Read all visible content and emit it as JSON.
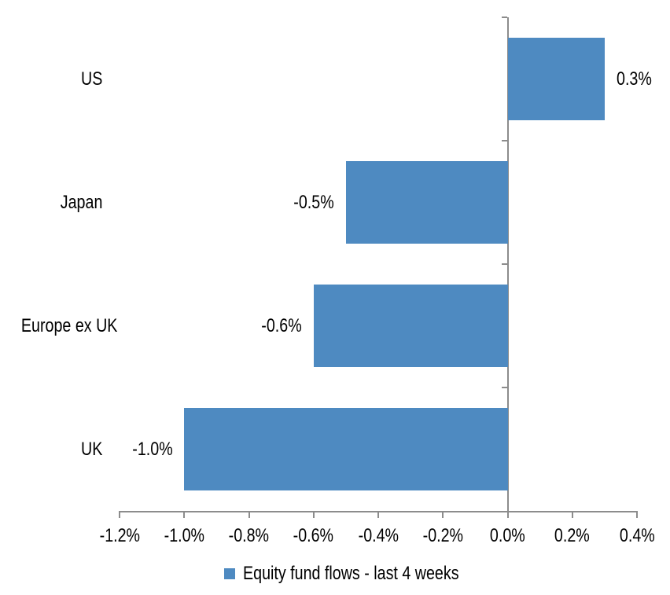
{
  "chart_data": {
    "type": "bar",
    "orientation": "horizontal",
    "categories": [
      "US",
      "Japan",
      "Europe ex UK",
      "UK"
    ],
    "values": [
      0.3,
      -0.5,
      -0.6,
      -1.0
    ],
    "data_labels": [
      "0.3%",
      "-0.5%",
      "-0.6%",
      "-1.0%"
    ],
    "series": [
      {
        "name": "Equity fund flows - last 4 weeks",
        "values": [
          0.3,
          -0.5,
          -0.6,
          -1.0
        ]
      }
    ],
    "xlim": [
      -1.2,
      0.4
    ],
    "x_tick_values": [
      -1.2,
      -1.0,
      -0.8,
      -0.6,
      -0.4,
      -0.2,
      0.0,
      0.2,
      0.4
    ],
    "x_tick_labels": [
      "-1.2%",
      "-1.0%",
      "-0.8%",
      "-0.6%",
      "-0.4%",
      "-0.2%",
      "0.0%",
      "0.2%",
      "0.4%"
    ],
    "grid": false,
    "legend_position": "bottom",
    "colors": {
      "bar": "#4E8AC1",
      "axis": "#8C8C8C",
      "text": "#000000",
      "background": "#FFFFFF"
    }
  },
  "legend": {
    "label": "Equity fund flows - last 4 weeks"
  }
}
